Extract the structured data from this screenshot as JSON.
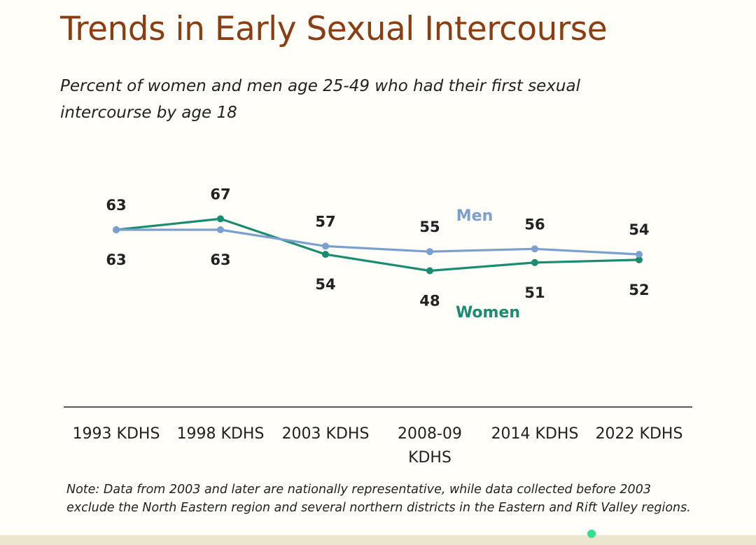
{
  "title": "Trends in Early Sexual Intercourse",
  "subtitle": "Percent of women and men age 25-49 who had their first sexual intercourse by age 18",
  "note": "Note: Data from 2003 and later are nationally representative, while data collected before 2003 exclude the North Eastern region and several northern districts in the Eastern and Rift Valley regions.",
  "colors": {
    "title": "#8b3e12",
    "men": "#7b9fcf",
    "women": "#1a8c70",
    "axis": "#222222"
  },
  "chart_data": {
    "type": "line",
    "categories": [
      [
        "1993 KDHS"
      ],
      [
        "1998 KDHS"
      ],
      [
        "2003 KDHS"
      ],
      [
        "2008-09",
        "KDHS"
      ],
      [
        "2014 KDHS"
      ],
      [
        "2022 KDHS"
      ]
    ],
    "series": [
      {
        "name": "Men",
        "values": [
          63,
          63,
          57,
          55,
          56,
          54
        ],
        "color": "#7b9fcf"
      },
      {
        "name": "Women",
        "values": [
          63,
          67,
          54,
          48,
          51,
          52
        ],
        "color": "#1a8c70"
      }
    ],
    "label_placement": {
      "Men": [
        "above",
        "below",
        "above",
        "above",
        "above",
        "above"
      ],
      "Women": [
        "below",
        "above",
        "below",
        "below",
        "below",
        "below"
      ]
    },
    "xlabel": "",
    "ylabel": "",
    "grid": false,
    "legend": "inline labels"
  }
}
